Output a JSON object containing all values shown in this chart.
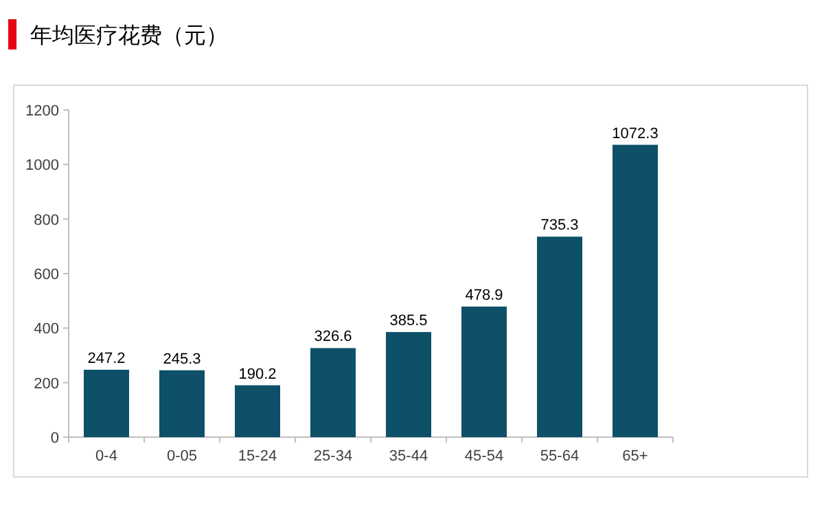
{
  "chart_data": {
    "type": "bar",
    "title": "年均医疗花费（元）",
    "categories": [
      "0-4",
      "0-05",
      "15-24",
      "25-34",
      "35-44",
      "45-54",
      "55-64",
      "65+"
    ],
    "values": [
      247.2,
      245.3,
      190.2,
      326.6,
      385.5,
      478.9,
      735.3,
      1072.3
    ],
    "color": "#0d5068",
    "ylim": [
      0,
      1200
    ],
    "yticks": [
      0,
      200,
      400,
      600,
      800,
      1000,
      1200
    ],
    "data_labels": true
  }
}
